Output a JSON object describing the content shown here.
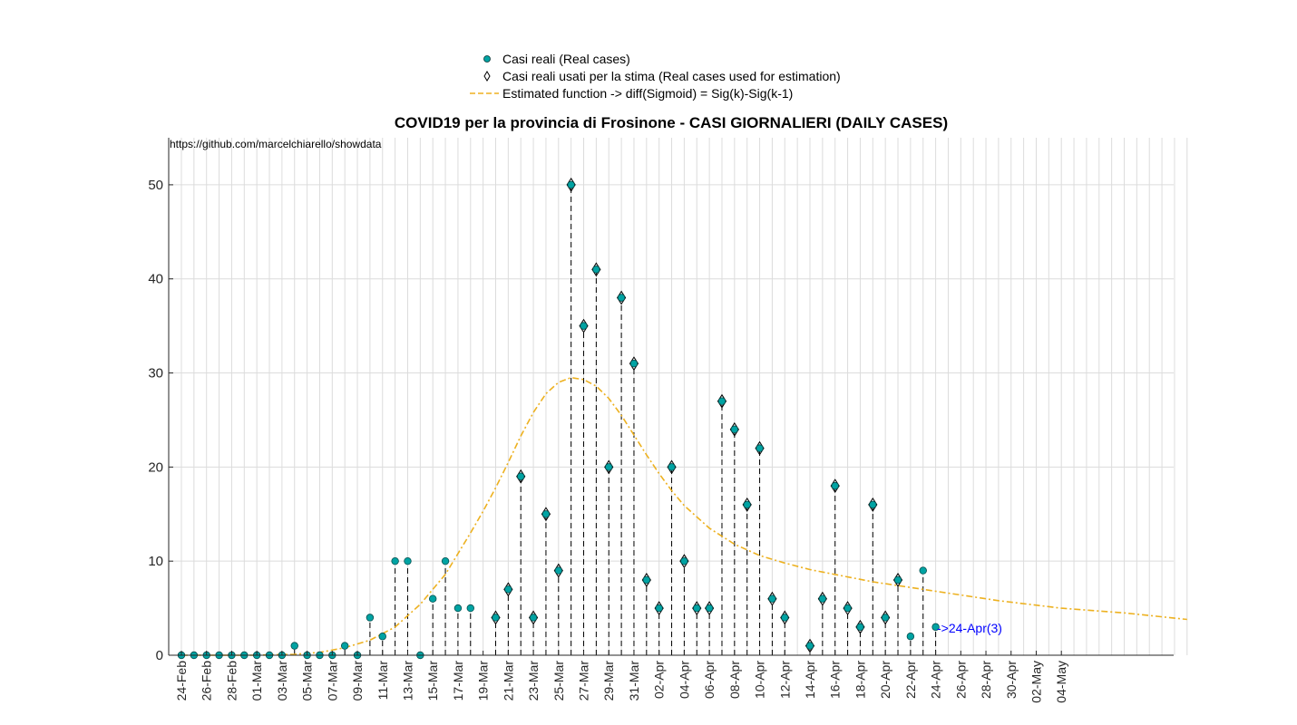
{
  "chart_data": {
    "type": "scatter",
    "title": "COVID19 per la provincia di Frosinone - CASI GIORNALIERI (DAILY CASES)",
    "source_note": "https://github.com/marcelchiarello/showdata",
    "annotation": "->24-Apr(3)",
    "xlabel": "",
    "ylabel": "",
    "ylim": [
      0,
      55
    ],
    "yticks": [
      0,
      10,
      20,
      30,
      40,
      50
    ],
    "xlim_days": [
      0,
      80
    ],
    "x_tick_labels": [
      "24-Feb",
      "26-Feb",
      "28-Feb",
      "01-Mar",
      "03-Mar",
      "05-Mar",
      "07-Mar",
      "09-Mar",
      "11-Mar",
      "13-Mar",
      "15-Mar",
      "17-Mar",
      "19-Mar",
      "21-Mar",
      "23-Mar",
      "25-Mar",
      "27-Mar",
      "29-Mar",
      "31-Mar",
      "02-Apr",
      "04-Apr",
      "06-Apr",
      "08-Apr",
      "10-Apr",
      "12-Apr",
      "14-Apr",
      "16-Apr",
      "18-Apr",
      "20-Apr",
      "22-Apr",
      "24-Apr",
      "26-Apr",
      "28-Apr",
      "30-Apr",
      "02-May",
      "04-May"
    ],
    "grid": true,
    "legend_position": "top-center",
    "legend": [
      "Casi reali (Real cases)",
      "Casi reali usati per la stima (Real cases used for estimation)",
      "Estimated function -> diff(Sigmoid) = Sig(k)-Sig(k-1)"
    ],
    "series": [
      {
        "name": "Casi reali (Real cases)",
        "color": "#00a3a3",
        "values": [
          0,
          0,
          0,
          0,
          0,
          0,
          0,
          0,
          0,
          1,
          0,
          0,
          0,
          1,
          0,
          4,
          2,
          10,
          10,
          0,
          6,
          10,
          5,
          5,
          null,
          4,
          7,
          19,
          4,
          15,
          9,
          50,
          35,
          41,
          20,
          38,
          31,
          8,
          5,
          20,
          10,
          5,
          5,
          27,
          24,
          16,
          22,
          6,
          4,
          null,
          1,
          6,
          18,
          5,
          3,
          16,
          4,
          8,
          2,
          9,
          3
        ]
      },
      {
        "name": "Casi reali usati per la stima (Real cases used for estimation)",
        "start_index": 25,
        "end_index": 57
      },
      {
        "name": "Estimated function -> diff(Sigmoid) = Sig(k)-Sig(k-1)",
        "color": "#edb120",
        "x": [
          0,
          6,
          9,
          11,
          13,
          15,
          17,
          19,
          21,
          23,
          24,
          25,
          26,
          27,
          28,
          29,
          30,
          31,
          32,
          33,
          34,
          35,
          36,
          37,
          38,
          39,
          40,
          42,
          44,
          46,
          48,
          50,
          55,
          60,
          65,
          70,
          75,
          80
        ],
        "values": [
          0,
          0,
          0.1,
          0.3,
          0.8,
          1.6,
          3.0,
          5.4,
          8.6,
          13,
          15.3,
          17.8,
          20.5,
          23.3,
          25.8,
          27.8,
          29.0,
          29.5,
          29.3,
          28.6,
          27.3,
          25.5,
          23.4,
          21.3,
          19.3,
          17.5,
          15.9,
          13.5,
          11.8,
          10.6,
          9.8,
          9.1,
          7.8,
          6.8,
          5.8,
          5.0,
          4.5,
          3.8
        ]
      }
    ]
  }
}
